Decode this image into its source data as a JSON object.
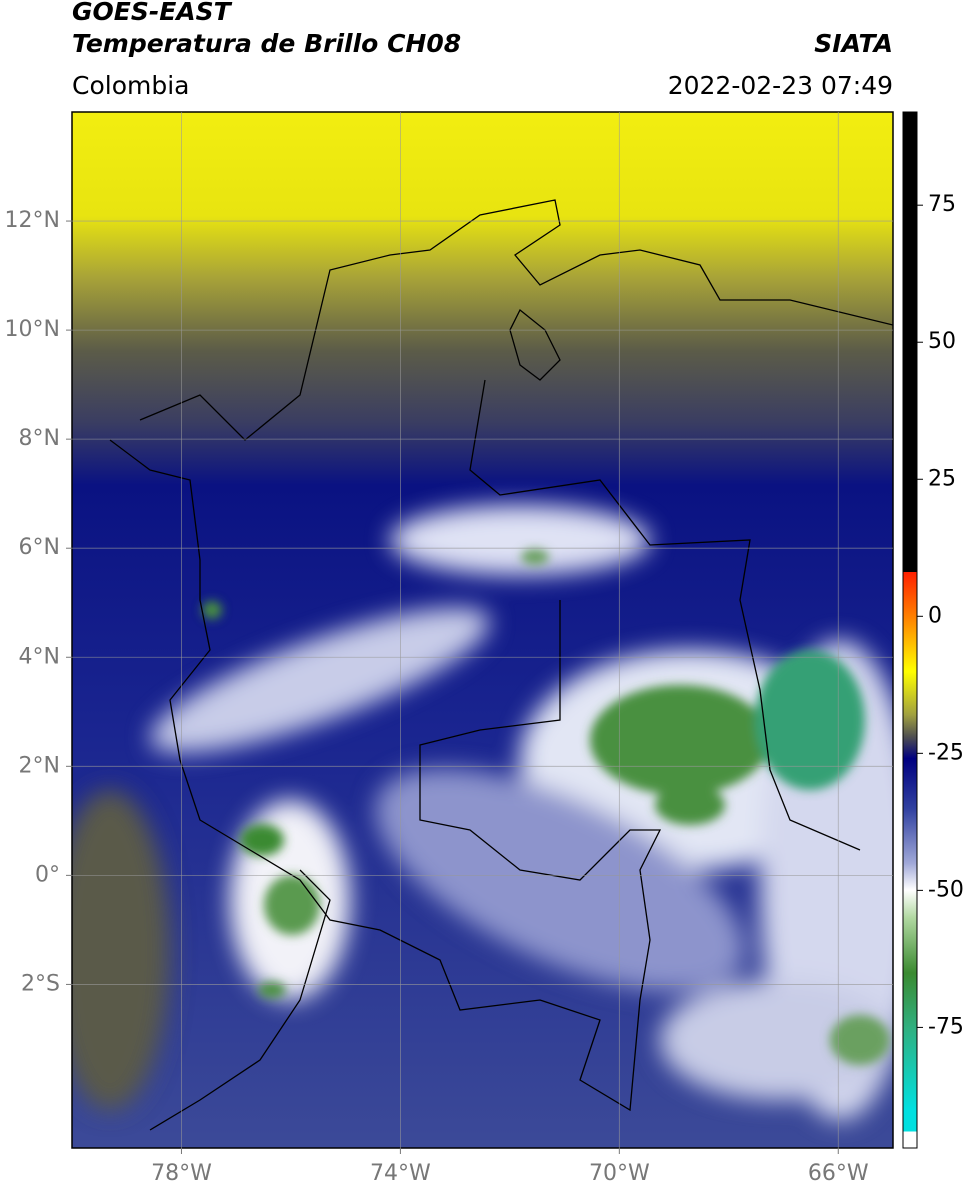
{
  "header": {
    "title": "GOES-EAST",
    "subtitle": "Temperatura de Brillo CH08",
    "region": "Colombia",
    "source": "SIATA",
    "timestamp": "2022-02-23 07:49"
  },
  "map": {
    "xlim": [
      -80,
      -65
    ],
    "ylim": [
      -5,
      14
    ],
    "xticks": [
      {
        "value": -78,
        "label": "78°W"
      },
      {
        "value": -74,
        "label": "74°W"
      },
      {
        "value": -70,
        "label": "70°W"
      },
      {
        "value": -66,
        "label": "66°W"
      }
    ],
    "yticks": [
      {
        "value": 12,
        "label": "12°N"
      },
      {
        "value": 10,
        "label": "10°N"
      },
      {
        "value": 8,
        "label": "8°N"
      },
      {
        "value": 6,
        "label": "6°N"
      },
      {
        "value": 4,
        "label": "4°N"
      },
      {
        "value": 2,
        "label": "2°N"
      },
      {
        "value": 0,
        "label": "0°"
      },
      {
        "value": -2,
        "label": "2°S"
      }
    ],
    "grid": true
  },
  "colorbar": {
    "lim": [
      -97,
      92
    ],
    "ticks": [
      75,
      50,
      25,
      0,
      -25,
      -50,
      -75
    ]
  }
}
